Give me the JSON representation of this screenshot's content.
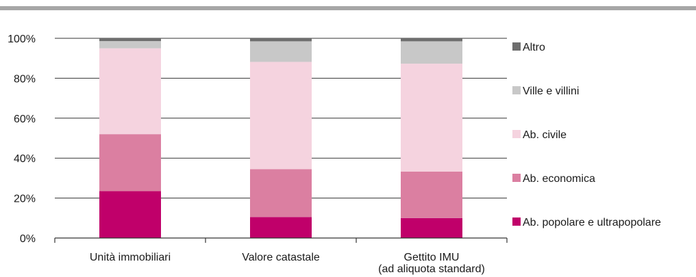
{
  "chart_data": {
    "type": "bar",
    "stacked": true,
    "categories": [
      [
        "Unità immobiliari"
      ],
      [
        "Valore catastale"
      ],
      [
        "Gettito IMU",
        "(ad aliquota standard)"
      ]
    ],
    "series": [
      {
        "name": "Ab. popolare e ultrapopolare",
        "color": "#c0006a",
        "values": [
          23.5,
          10.5,
          10.0
        ]
      },
      {
        "name": "Ab. economica",
        "color": "#db7fa1",
        "values": [
          28.5,
          24.0,
          23.3
        ]
      },
      {
        "name": "Ab. civile",
        "color": "#f5d3df",
        "values": [
          43.0,
          53.7,
          54.0
        ]
      },
      {
        "name": "Ville e villini",
        "color": "#c8c8c8",
        "values": [
          3.6,
          10.3,
          11.2
        ]
      },
      {
        "name": "Altro",
        "color": "#6e6e6e",
        "values": [
          1.4,
          1.5,
          1.5
        ]
      }
    ],
    "yticks": [
      "0%",
      "20%",
      "40%",
      "60%",
      "80%",
      "100%"
    ],
    "ylim": [
      0,
      100
    ],
    "legend_order": [
      "Altro",
      "Ville e villini",
      "Ab. civile",
      "Ab. economica",
      "Ab. popolare e ultrapopolare"
    ],
    "legend_position": "right",
    "grid": true
  }
}
